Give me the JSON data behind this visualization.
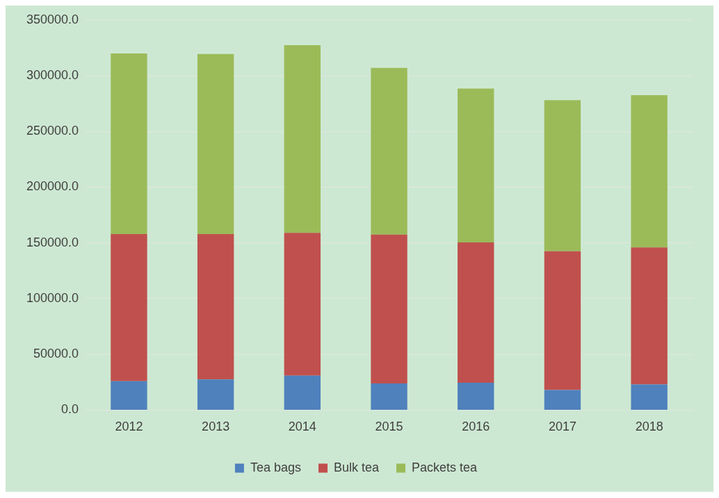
{
  "chart_data": {
    "type": "bar",
    "stacked": true,
    "categories": [
      "2012",
      "2013",
      "2014",
      "2015",
      "2016",
      "2017",
      "2018"
    ],
    "series": [
      {
        "name": "Tea bags",
        "color": "#4f81bd",
        "values": [
          26000,
          27500,
          31000,
          24000,
          24500,
          18000,
          23000
        ]
      },
      {
        "name": "Bulk tea",
        "color": "#c0504d",
        "values": [
          132000,
          130500,
          128000,
          133500,
          126000,
          124500,
          123000
        ]
      },
      {
        "name": "Packets tea",
        "color": "#9bbb59",
        "values": [
          162000,
          161500,
          168500,
          149500,
          138000,
          135500,
          136500
        ]
      }
    ],
    "ylim": [
      0,
      350000
    ],
    "yticks": [
      {
        "value": 0,
        "label": "0.0"
      },
      {
        "value": 50000,
        "label": "50000.0"
      },
      {
        "value": 100000,
        "label": "100000.0"
      },
      {
        "value": 150000,
        "label": "150000.0"
      },
      {
        "value": 200000,
        "label": "200000.0"
      },
      {
        "value": 250000,
        "label": "250000.0"
      },
      {
        "value": 300000,
        "label": "300000.0"
      },
      {
        "value": 350000,
        "label": "350000.0"
      }
    ],
    "grid": "y",
    "legend": "bottom"
  }
}
